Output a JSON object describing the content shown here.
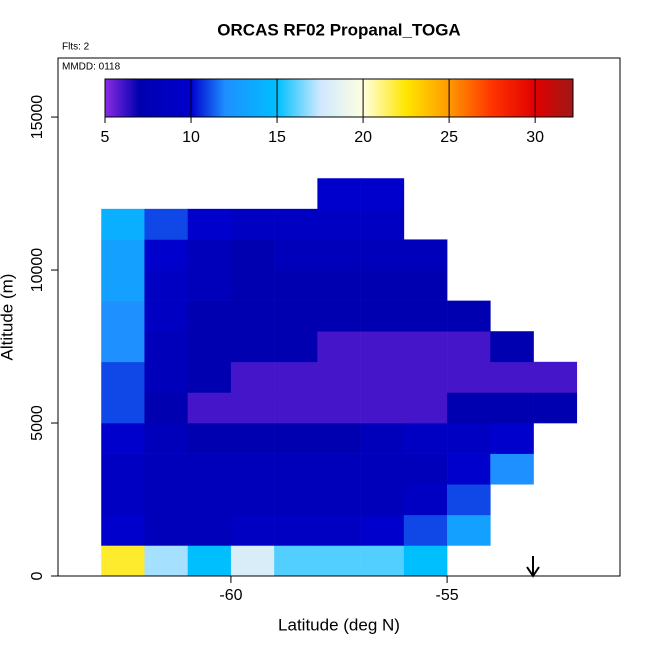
{
  "chart_data": {
    "type": "heatmap",
    "title": "ORCAS RF02 Propanal_TOGA",
    "subtitle": "Flts: 2",
    "annotation": "MMDD: 0118",
    "x_label": "Latitude (deg N)",
    "y_label": "Altitude (m)",
    "x": [
      -62.5,
      -61.5,
      -60.5,
      -59.5,
      -58.5,
      -57.5,
      -56.5,
      -55.5,
      -54.5,
      -53.5,
      -52.5
    ],
    "y": [
      500,
      1500,
      2500,
      3500,
      4500,
      5500,
      6500,
      7500,
      8500,
      9500,
      10500,
      11500,
      12500
    ],
    "values": [
      [
        22,
        17,
        15,
        18,
        16,
        16,
        16,
        15,
        null,
        null,
        null
      ],
      [
        10,
        8,
        8,
        9,
        9,
        9,
        10,
        11,
        13,
        null,
        null
      ],
      [
        9,
        8,
        8,
        8,
        8,
        8,
        8,
        9,
        11,
        null,
        null
      ],
      [
        9,
        8,
        8,
        8,
        8,
        8,
        8,
        8,
        10,
        12,
        null
      ],
      [
        10,
        8,
        7,
        7,
        7,
        7,
        8,
        9,
        9,
        10,
        null
      ],
      [
        11,
        7,
        6,
        6,
        6,
        6,
        6,
        6,
        7,
        7,
        7
      ],
      [
        11,
        8,
        7,
        6,
        6,
        6,
        6,
        6,
        6,
        6,
        6
      ],
      [
        12,
        8,
        7,
        7,
        7,
        6,
        6,
        6,
        6,
        7,
        null
      ],
      [
        12,
        9,
        7,
        7,
        7,
        7,
        7,
        7,
        7,
        null,
        null
      ],
      [
        13,
        9,
        8,
        7,
        7,
        7,
        7,
        7,
        null,
        null,
        null
      ],
      [
        13,
        10,
        8,
        7,
        8,
        8,
        8,
        8,
        null,
        null,
        null
      ],
      [
        14,
        11,
        10,
        9,
        9,
        9,
        9,
        null,
        null,
        null,
        null
      ],
      [
        null,
        null,
        null,
        null,
        null,
        10,
        10,
        null,
        null,
        null,
        null
      ]
    ],
    "xlim": [
      -64.0,
      -51.0
    ],
    "ylim": [
      0,
      16930
    ],
    "xticks": [
      -60,
      -55
    ],
    "yticks": [
      0,
      5000,
      10000,
      15000
    ],
    "colorbar": {
      "lim": [
        5,
        32.2
      ],
      "ticks": [
        5,
        10,
        15,
        20,
        25,
        30
      ]
    },
    "colormap": [
      {
        "value": 5,
        "color": "#8a2be2"
      },
      {
        "value": 7,
        "color": "#0000b0"
      },
      {
        "value": 10,
        "color": "#0000cd"
      },
      {
        "value": 12,
        "color": "#1e90ff"
      },
      {
        "value": 15,
        "color": "#00bfff"
      },
      {
        "value": 17.5,
        "color": "#cfe8ff"
      },
      {
        "value": 20,
        "color": "#ffffe0"
      },
      {
        "value": 22.5,
        "color": "#ffe600"
      },
      {
        "value": 25,
        "color": "#ff9900"
      },
      {
        "value": 27.5,
        "color": "#ff3300"
      },
      {
        "value": 30,
        "color": "#e00000"
      },
      {
        "value": 32.2,
        "color": "#a01818"
      }
    ]
  }
}
